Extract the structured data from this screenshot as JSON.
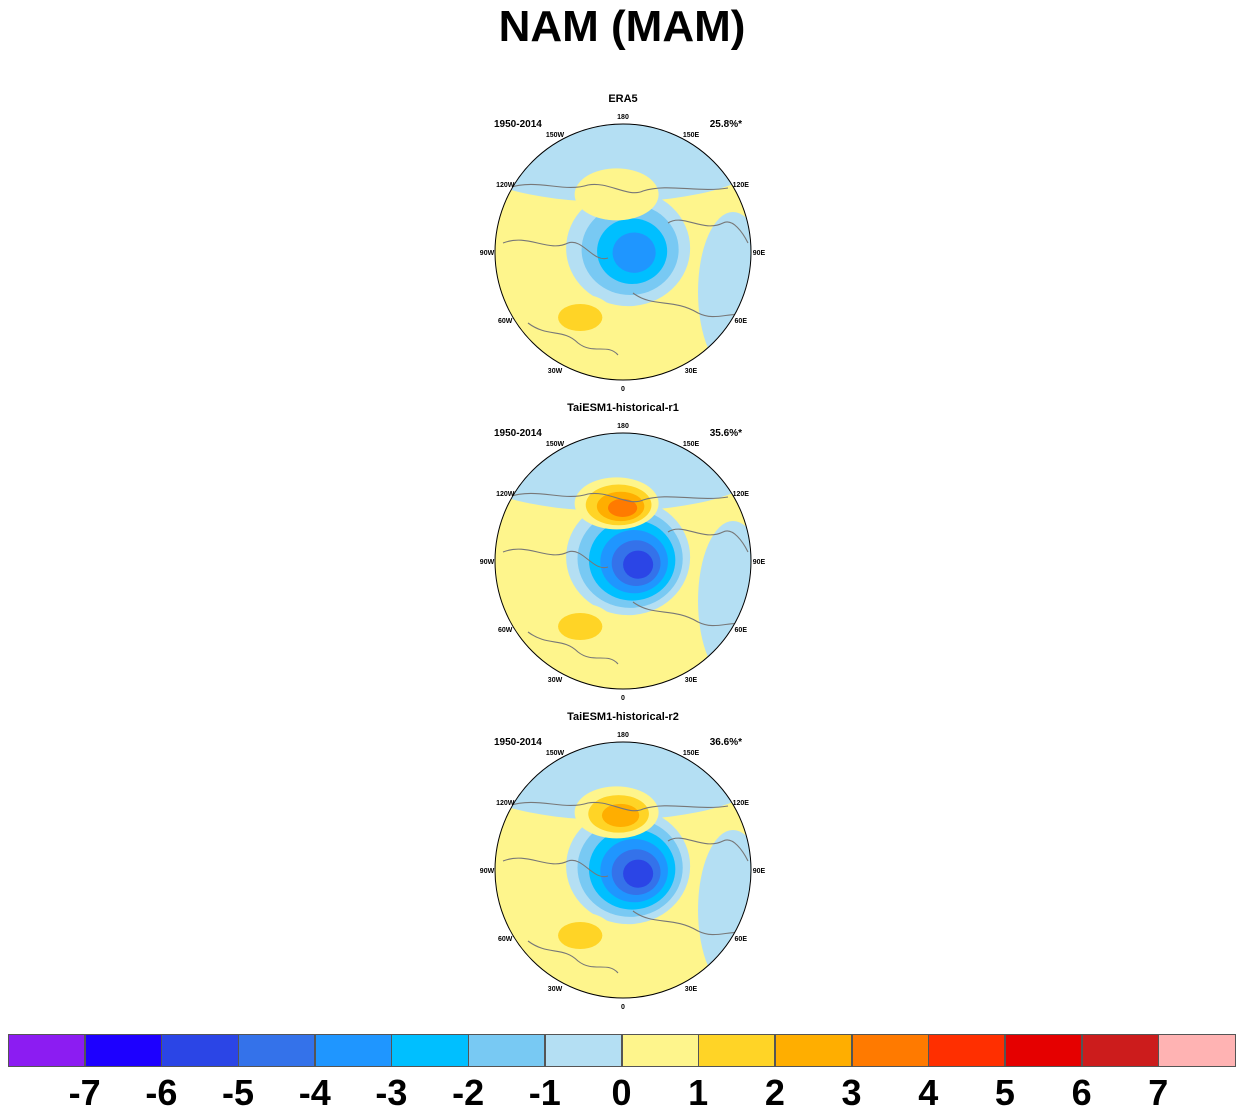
{
  "title": "NAM (MAM)",
  "chart_data": {
    "type": "heatmap",
    "projection": "north-polar-stereographic",
    "variable_note": "",
    "longitude_labels": [
      "180",
      "150E",
      "120E",
      "90E",
      "60E",
      "30E",
      "0",
      "30W",
      "60W",
      "90W",
      "120W",
      "150W"
    ],
    "panels": [
      {
        "title": "ERA5",
        "period": "1950-2014",
        "explained_variance": "25.8%*",
        "centers": [
          {
            "region": "arctic",
            "value": -4.0
          },
          {
            "region": "north-pacific",
            "value": 1.0
          },
          {
            "region": "north-atlantic",
            "value": 1.5
          }
        ]
      },
      {
        "title": "TaiESM1-historical-r1",
        "period": "1950-2014",
        "explained_variance": "35.6%*",
        "centers": [
          {
            "region": "arctic",
            "value": -5.5
          },
          {
            "region": "north-pacific",
            "value": 4.0
          },
          {
            "region": "north-atlantic",
            "value": 1.5
          }
        ]
      },
      {
        "title": "TaiESM1-historical-r2",
        "period": "1950-2014",
        "explained_variance": "36.6%*",
        "centers": [
          {
            "region": "arctic",
            "value": -5.5
          },
          {
            "region": "north-pacific",
            "value": 2.5
          },
          {
            "region": "north-atlantic",
            "value": 1.5
          }
        ]
      }
    ],
    "colorbar": {
      "labels": [
        "-7",
        "-6",
        "-5",
        "-4",
        "-3",
        "-2",
        "-1",
        "0",
        "1",
        "2",
        "3",
        "4",
        "5",
        "6",
        "7"
      ],
      "colors": [
        "#8c1cf2",
        "#1d00ff",
        "#2b45e6",
        "#3472ea",
        "#1f96ff",
        "#00bfff",
        "#78c9f3",
        "#b4dff3",
        "#fef58c",
        "#ffd426",
        "#ffae00",
        "#ff7a00",
        "#ff2f00",
        "#e50000",
        "#cc1c1c",
        "#ffb3b3"
      ]
    }
  }
}
